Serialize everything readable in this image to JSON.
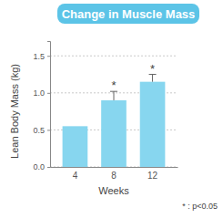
{
  "chart_data": {
    "type": "bar",
    "title": "Change in Muscle Mass",
    "x_label": "Weeks",
    "y_label": "Lean Body Mass (kg)",
    "categories": [
      "4",
      "8",
      "12"
    ],
    "values": [
      0.55,
      0.9,
      1.15
    ],
    "errors": [
      null,
      0.12,
      0.1
    ],
    "significance": [
      null,
      "*",
      "*"
    ],
    "note": "* : p<0.05",
    "color": "#87d6ef",
    "ylim": [
      0,
      1.7
    ],
    "yticks": [
      {
        "value": 0,
        "label": "0.0"
      },
      0.5,
      {
        "value": 1,
        "label": "1.0"
      },
      1.5
    ],
    "grid": true
  }
}
